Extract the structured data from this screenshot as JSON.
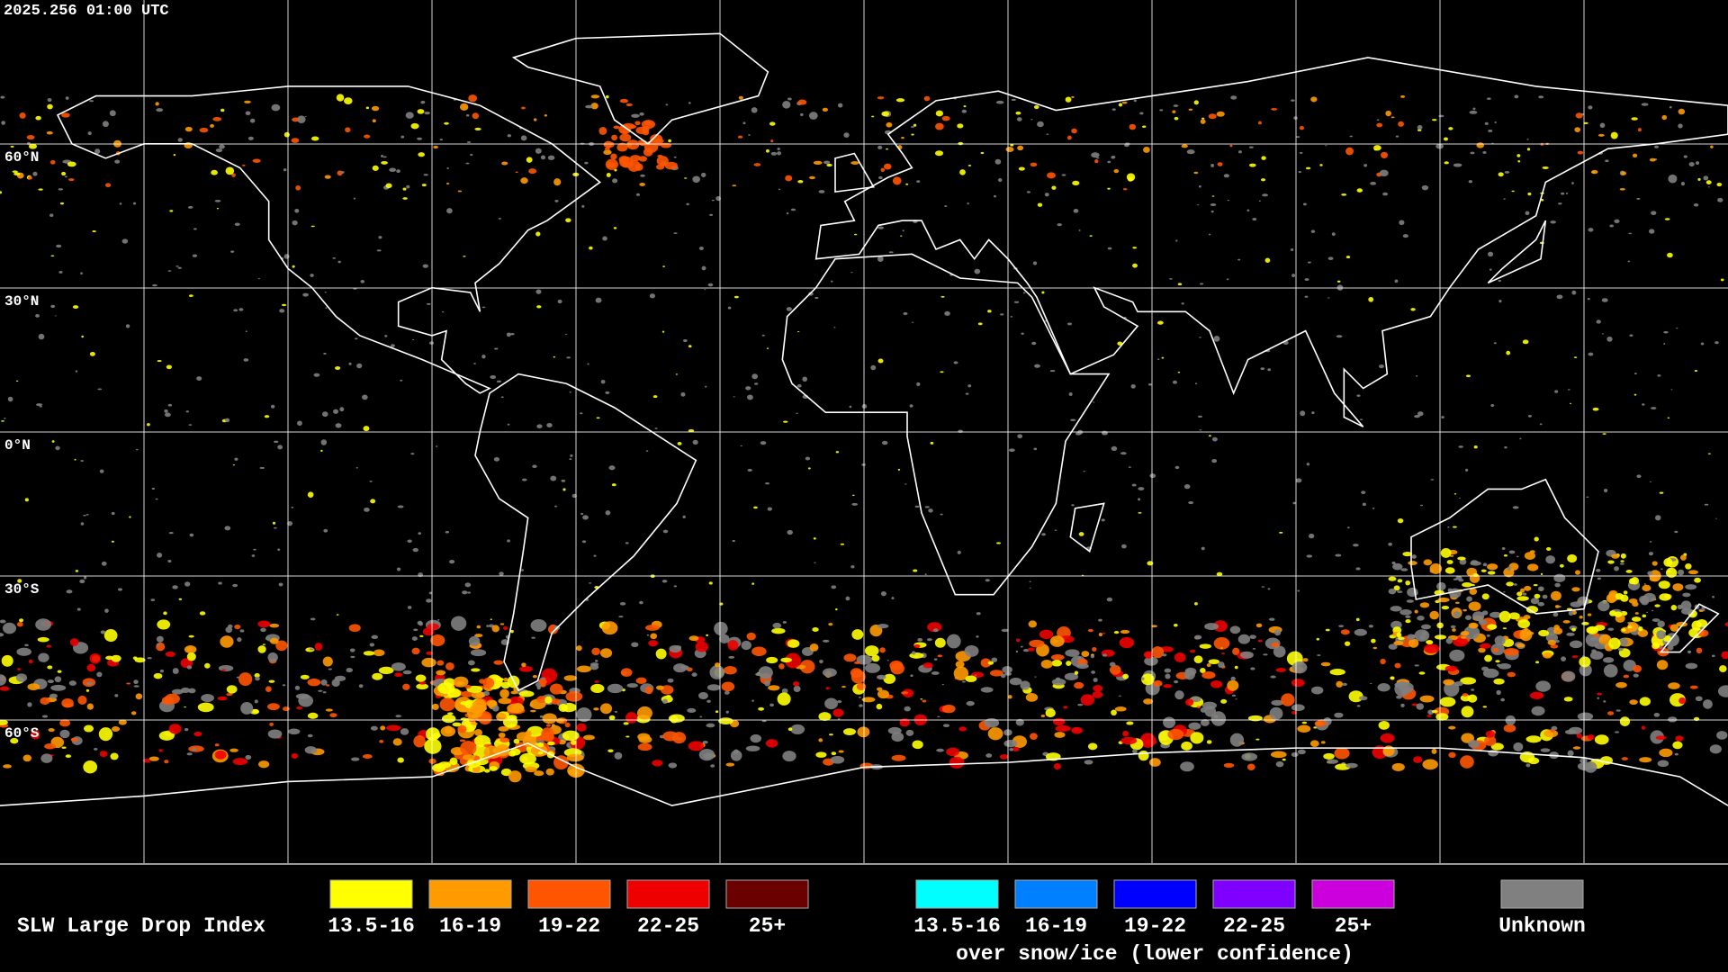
{
  "timestamp": "2025.256 01:00 UTC",
  "latitude_labels": [
    "60°N",
    "30°N",
    "0°N",
    "30°S",
    "60°S"
  ],
  "legend": {
    "title": "SLW Large Drop Index",
    "liquid": [
      {
        "label": "13.5-16",
        "color": "#ffff00"
      },
      {
        "label": "16-19",
        "color": "#ff9a00"
      },
      {
        "label": "19-22",
        "color": "#ff5500"
      },
      {
        "label": "22-25",
        "color": "#ee0000"
      },
      {
        "label": "25+",
        "color": "#6a0000"
      }
    ],
    "snow_ice": [
      {
        "label": "13.5-16",
        "color": "#00ffff"
      },
      {
        "label": "16-19",
        "color": "#0080ff"
      },
      {
        "label": "19-22",
        "color": "#0000ff"
      },
      {
        "label": "22-25",
        "color": "#8000ff"
      },
      {
        "label": "25+",
        "color": "#cc00dd"
      }
    ],
    "snow_ice_note": "over snow/ice (lower confidence)",
    "unknown": {
      "label": "Unknown",
      "color": "#808080"
    }
  }
}
